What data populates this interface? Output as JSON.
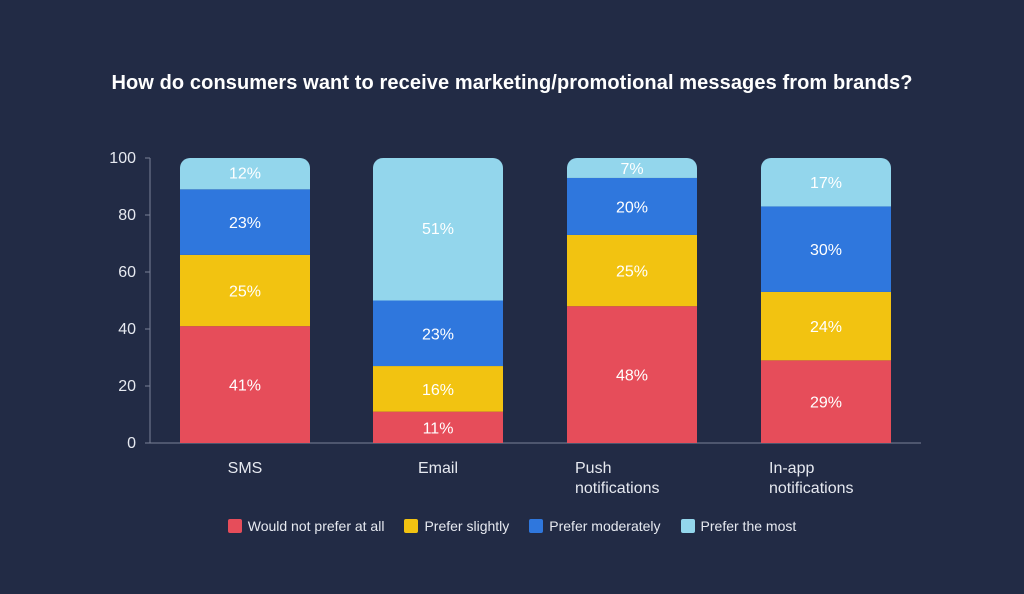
{
  "chart_data": {
    "type": "bar",
    "stacked": true,
    "title": "How do consumers want to receive marketing/promotional messages from brands?",
    "categories": [
      "SMS",
      "Email",
      "Push notifications",
      "In-app notifications"
    ],
    "category_lines": [
      [
        "SMS"
      ],
      [
        "Email"
      ],
      [
        "Push",
        "notifications"
      ],
      [
        "In-app",
        "notifications"
      ]
    ],
    "series": [
      {
        "name": "Would not prefer at all",
        "color": "#e64d5a",
        "values": [
          41,
          11,
          48,
          29
        ]
      },
      {
        "name": "Prefer slightly",
        "color": "#f2c311",
        "values": [
          25,
          16,
          25,
          24
        ]
      },
      {
        "name": "Prefer moderately",
        "color": "#2f77dd",
        "values": [
          23,
          23,
          20,
          30
        ]
      },
      {
        "name": "Prefer the most",
        "color": "#93d6ec",
        "values": [
          12,
          51,
          7,
          17
        ]
      }
    ],
    "value_labels": [
      [
        "41%",
        "11%",
        "48%",
        "29%"
      ],
      [
        "25%",
        "16%",
        "25%",
        "24%"
      ],
      [
        "23%",
        "23%",
        "20%",
        "30%"
      ],
      [
        "12%",
        "51%",
        "7%",
        "17%"
      ]
    ],
    "ylim": [
      0,
      100
    ],
    "yticks": [
      0,
      20,
      40,
      60,
      80,
      100
    ],
    "xlabel": "",
    "ylabel": "",
    "grid": false,
    "legend_position": "bottom"
  }
}
